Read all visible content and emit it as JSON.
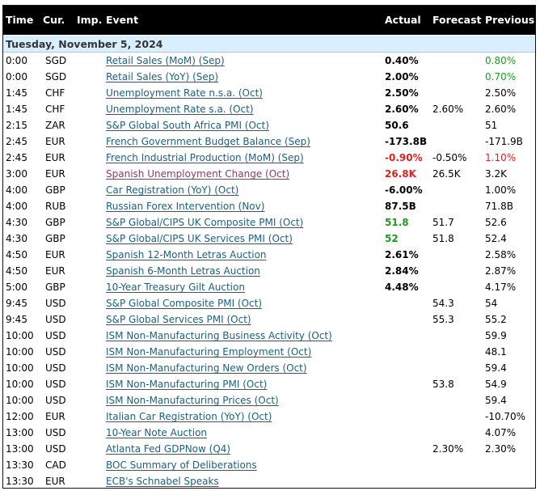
{
  "header": {
    "time": "Time",
    "currency": "Cur.",
    "importance": "Imp.",
    "event": "Event",
    "actual": "Actual",
    "forecast": "Forecast",
    "previous": "Previous"
  },
  "date_label": "Tuesday, November 5, 2024",
  "colors": {
    "positive": "#1e9b1e",
    "negative": "#e02020",
    "link": "#1f5f7f",
    "visited_link": "#8a3d5d",
    "date_band": "#d9efff",
    "header_bg": "#000000"
  },
  "rows": [
    {
      "time": "0:00",
      "currency": "SGD",
      "event": "Retail Sales (MoM) (Sep)",
      "actual": "0.40%",
      "actual_color": "black",
      "forecast": "",
      "previous": "0.80%",
      "previous_color": "green"
    },
    {
      "time": "0:00",
      "currency": "SGD",
      "event": "Retail Sales (YoY) (Sep)",
      "actual": "2.00%",
      "actual_color": "black",
      "forecast": "",
      "previous": "0.70%",
      "previous_color": "green"
    },
    {
      "time": "1:45",
      "currency": "CHF",
      "event": "Unemployment Rate n.s.a. (Oct)",
      "actual": "2.50%",
      "actual_color": "black",
      "forecast": "",
      "previous": "2.50%",
      "previous_color": "black"
    },
    {
      "time": "1:45",
      "currency": "CHF",
      "event": "Unemployment Rate s.a. (Oct)",
      "actual": "2.60%",
      "actual_color": "black",
      "forecast": "2.60%",
      "previous": "2.60%",
      "previous_color": "black"
    },
    {
      "time": "2:15",
      "currency": "ZAR",
      "event": "S&P Global South Africa PMI (Oct)",
      "actual": "50.6",
      "actual_color": "black",
      "forecast": "",
      "previous": "51",
      "previous_color": "black"
    },
    {
      "time": "2:45",
      "currency": "EUR",
      "event": "French Government Budget Balance (Sep)",
      "actual": "-173.8B",
      "actual_color": "black",
      "forecast": "",
      "previous": "-171.9B",
      "previous_color": "black"
    },
    {
      "time": "2:45",
      "currency": "EUR",
      "event": "French Industrial Production (MoM) (Sep)",
      "actual": "-0.90%",
      "actual_color": "red",
      "forecast": "-0.50%",
      "previous": "1.10%",
      "previous_color": "red"
    },
    {
      "time": "3:00",
      "currency": "EUR",
      "event": "Spanish Unemployment Change (Oct)",
      "event_visited": true,
      "actual": "26.8K",
      "actual_color": "red",
      "forecast": "26.5K",
      "previous": "3.2K",
      "previous_color": "black"
    },
    {
      "time": "4:00",
      "currency": "GBP",
      "event": "Car Registration (YoY) (Oct)",
      "actual": "-6.00%",
      "actual_color": "black",
      "forecast": "",
      "previous": "1.00%",
      "previous_color": "black"
    },
    {
      "time": "4:00",
      "currency": "RUB",
      "event": "Russian Forex Intervention (Nov)",
      "actual": "87.5B",
      "actual_color": "black",
      "forecast": "",
      "previous": "71.8B",
      "previous_color": "black"
    },
    {
      "time": "4:30",
      "currency": "GBP",
      "event": "S&P Global/CIPS UK Composite PMI (Oct)",
      "actual": "51.8",
      "actual_color": "green",
      "forecast": "51.7",
      "previous": "52.6",
      "previous_color": "black"
    },
    {
      "time": "4:30",
      "currency": "GBP",
      "event": "S&P Global/CIPS UK Services PMI (Oct)",
      "actual": "52",
      "actual_color": "green",
      "forecast": "51.8",
      "previous": "52.4",
      "previous_color": "black"
    },
    {
      "time": "4:50",
      "currency": "EUR",
      "event": "Spanish 12-Month Letras Auction",
      "actual": "2.61%",
      "actual_color": "black",
      "forecast": "",
      "previous": "2.58%",
      "previous_color": "black"
    },
    {
      "time": "4:50",
      "currency": "EUR",
      "event": "Spanish 6-Month Letras Auction",
      "actual": "2.84%",
      "actual_color": "black",
      "forecast": "",
      "previous": "2.87%",
      "previous_color": "black"
    },
    {
      "time": "5:00",
      "currency": "GBP",
      "event": "10-Year Treasury Gilt Auction",
      "actual": "4.48%",
      "actual_color": "black",
      "forecast": "",
      "previous": "4.17%",
      "previous_color": "black"
    },
    {
      "time": "9:45",
      "currency": "USD",
      "event": "S&P Global Composite PMI (Oct)",
      "actual": "",
      "actual_color": "black",
      "forecast": "54.3",
      "previous": "54",
      "previous_color": "black"
    },
    {
      "time": "9:45",
      "currency": "USD",
      "event": "S&P Global Services PMI (Oct)",
      "actual": "",
      "actual_color": "black",
      "forecast": "55.3",
      "previous": "55.2",
      "previous_color": "black"
    },
    {
      "time": "10:00",
      "currency": "USD",
      "event": "ISM Non-Manufacturing Business Activity (Oct)",
      "actual": "",
      "actual_color": "black",
      "forecast": "",
      "previous": "59.9",
      "previous_color": "black"
    },
    {
      "time": "10:00",
      "currency": "USD",
      "event": "ISM Non-Manufacturing Employment (Oct)",
      "actual": "",
      "actual_color": "black",
      "forecast": "",
      "previous": "48.1",
      "previous_color": "black"
    },
    {
      "time": "10:00",
      "currency": "USD",
      "event": "ISM Non-Manufacturing New Orders (Oct)",
      "actual": "",
      "actual_color": "black",
      "forecast": "",
      "previous": "59.4",
      "previous_color": "black"
    },
    {
      "time": "10:00",
      "currency": "USD",
      "event": "ISM Non-Manufacturing PMI (Oct)",
      "actual": "",
      "actual_color": "black",
      "forecast": "53.8",
      "previous": "54.9",
      "previous_color": "black"
    },
    {
      "time": "10:00",
      "currency": "USD",
      "event": "ISM Non-Manufacturing Prices (Oct)",
      "actual": "",
      "actual_color": "black",
      "forecast": "",
      "previous": "59.4",
      "previous_color": "black"
    },
    {
      "time": "12:00",
      "currency": "EUR",
      "event": "Italian Car Registration (YoY) (Oct)",
      "actual": "",
      "actual_color": "black",
      "forecast": "",
      "previous": "-10.70%",
      "previous_color": "black"
    },
    {
      "time": "13:00",
      "currency": "USD",
      "event": "10-Year Note Auction",
      "actual": "",
      "actual_color": "black",
      "forecast": "",
      "previous": "4.07%",
      "previous_color": "black"
    },
    {
      "time": "13:00",
      "currency": "USD",
      "event": "Atlanta Fed GDPNow (Q4)",
      "actual": "",
      "actual_color": "black",
      "forecast": "2.30%",
      "previous": "2.30%",
      "previous_color": "black"
    },
    {
      "time": "13:30",
      "currency": "CAD",
      "event": "BOC Summary of Deliberations",
      "actual": "",
      "actual_color": "black",
      "forecast": "",
      "previous": "",
      "previous_color": "black"
    },
    {
      "time": "13:30",
      "currency": "EUR",
      "event": "ECB's Schnabel Speaks",
      "actual": "",
      "actual_color": "black",
      "forecast": "",
      "previous": "",
      "previous_color": "black"
    }
  ]
}
